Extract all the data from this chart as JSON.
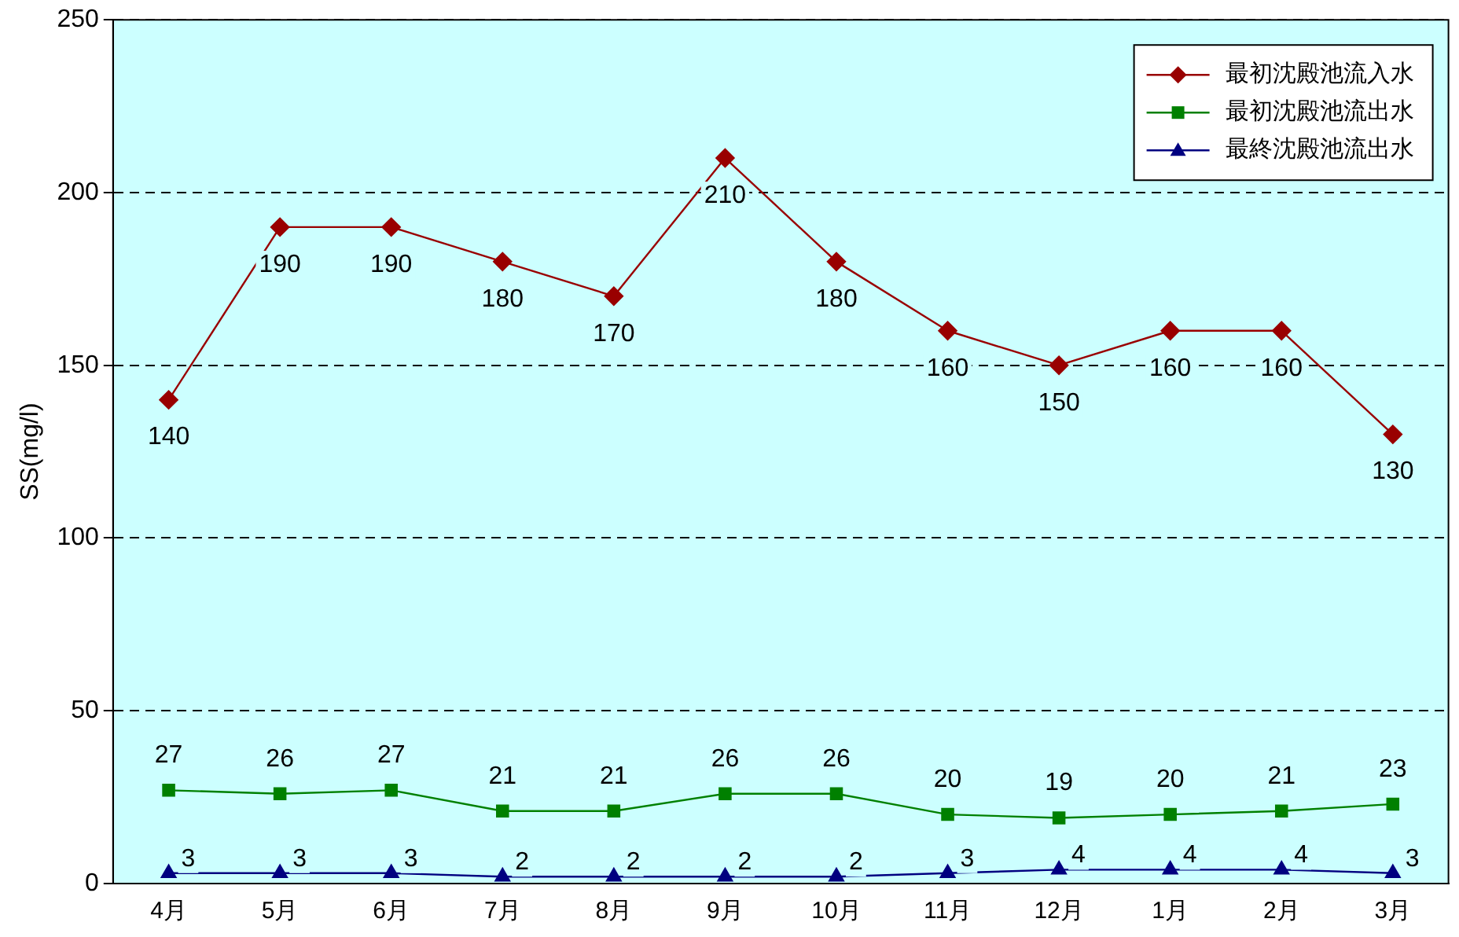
{
  "chart_data": {
    "type": "line",
    "ylabel": "SS(mg/l)",
    "categories": [
      "4月",
      "5月",
      "6月",
      "7月",
      "8月",
      "9月",
      "10月",
      "11月",
      "12月",
      "1月",
      "2月",
      "3月"
    ],
    "series": [
      {
        "name": "最初沈殿池流入水",
        "color": "#990000",
        "marker": "diamond",
        "values": [
          140,
          190,
          190,
          180,
          170,
          210,
          180,
          160,
          150,
          160,
          160,
          130
        ]
      },
      {
        "name": "最初沈殿池流出水",
        "color": "#008000",
        "marker": "square",
        "values": [
          27,
          26,
          27,
          21,
          21,
          26,
          26,
          20,
          19,
          20,
          21,
          23
        ]
      },
      {
        "name": "最終沈殿池流出水",
        "color": "#000080",
        "marker": "triangle",
        "values": [
          3,
          3,
          3,
          2,
          2,
          2,
          2,
          3,
          4,
          4,
          4,
          3
        ]
      }
    ],
    "ylim": [
      0,
      250
    ],
    "yticks": [
      0,
      50,
      100,
      150,
      200,
      250
    ],
    "grid": "y",
    "legend": "top right",
    "data_labels": true
  }
}
